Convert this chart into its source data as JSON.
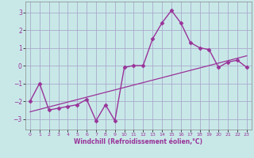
{
  "title": "",
  "xlabel": "Windchill (Refroidissement éolien,°C)",
  "ylabel": "",
  "background_color": "#c8e8e8",
  "grid_color": "#aaaacc",
  "line_color": "#993399",
  "xlim": [
    -0.5,
    23.5
  ],
  "ylim": [
    -3.6,
    3.6
  ],
  "yticks": [
    -3,
    -2,
    -1,
    0,
    1,
    2,
    3
  ],
  "xticks": [
    0,
    1,
    2,
    3,
    4,
    5,
    6,
    7,
    8,
    9,
    10,
    11,
    12,
    13,
    14,
    15,
    16,
    17,
    18,
    19,
    20,
    21,
    22,
    23
  ],
  "jagged_x": [
    0,
    1,
    2,
    3,
    4,
    5,
    6,
    7,
    8,
    9,
    10,
    11,
    12,
    13,
    14,
    15,
    16,
    17,
    18,
    19,
    20,
    21,
    22,
    23
  ],
  "jagged_y": [
    -2.0,
    -1.0,
    -2.5,
    -2.4,
    -2.3,
    -2.2,
    -1.9,
    -3.1,
    -2.2,
    -3.1,
    -0.1,
    0.0,
    0.0,
    1.5,
    2.4,
    3.1,
    2.4,
    1.3,
    1.0,
    0.9,
    -0.1,
    0.2,
    0.3,
    -0.1
  ],
  "trend_x": [
    0,
    23
  ],
  "trend_y": [
    -2.6,
    0.55
  ],
  "marker": "D",
  "markersize": 2.5,
  "linewidth": 1.0,
  "trend_linewidth": 0.9
}
